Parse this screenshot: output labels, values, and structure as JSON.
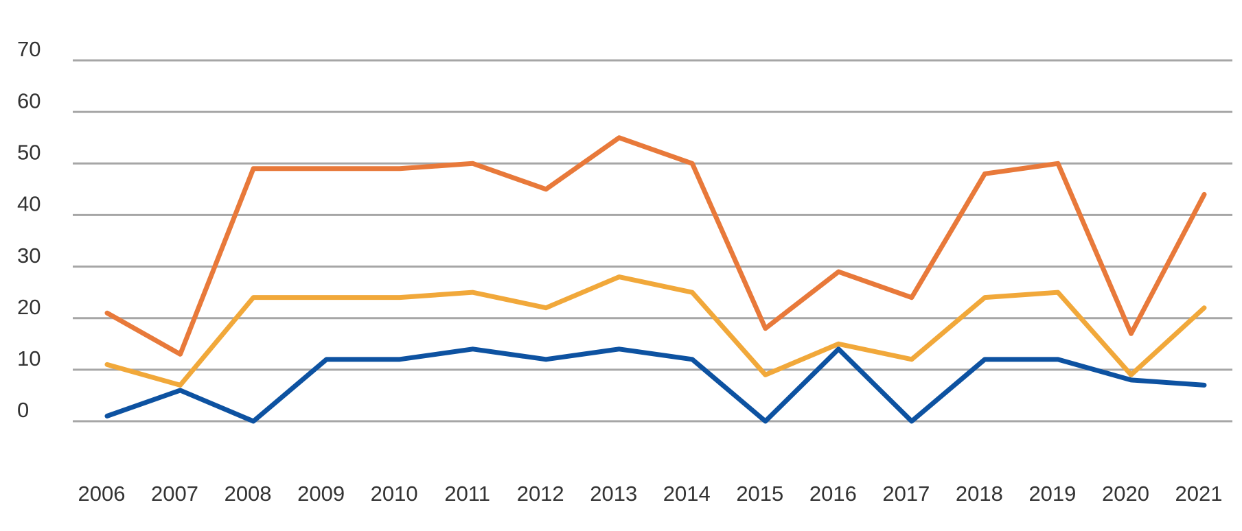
{
  "chart_data": {
    "type": "line",
    "categories": [
      "2006",
      "2007",
      "2008",
      "2009",
      "2010",
      "2011",
      "2012",
      "2013",
      "2014",
      "2015",
      "2016",
      "2017",
      "2018",
      "2019",
      "2020",
      "2021"
    ],
    "series": [
      {
        "color": "#e8793a",
        "values": [
          21,
          13,
          49,
          49,
          49,
          50,
          45,
          55,
          50,
          18,
          29,
          24,
          48,
          50,
          17,
          44
        ]
      },
      {
        "color": "#f1a83a",
        "values": [
          11,
          7,
          24,
          24,
          24,
          25,
          22,
          28,
          25,
          9,
          15,
          12,
          24,
          25,
          9,
          22
        ]
      },
      {
        "color": "#0d52a1",
        "values": [
          1,
          6,
          0,
          12,
          12,
          14,
          12,
          14,
          12,
          0,
          14,
          0,
          12,
          12,
          8,
          7
        ]
      }
    ],
    "ylim": [
      0,
      70
    ],
    "yticks": [
      0,
      10,
      20,
      30,
      40,
      50,
      60,
      70
    ],
    "grid": true
  }
}
